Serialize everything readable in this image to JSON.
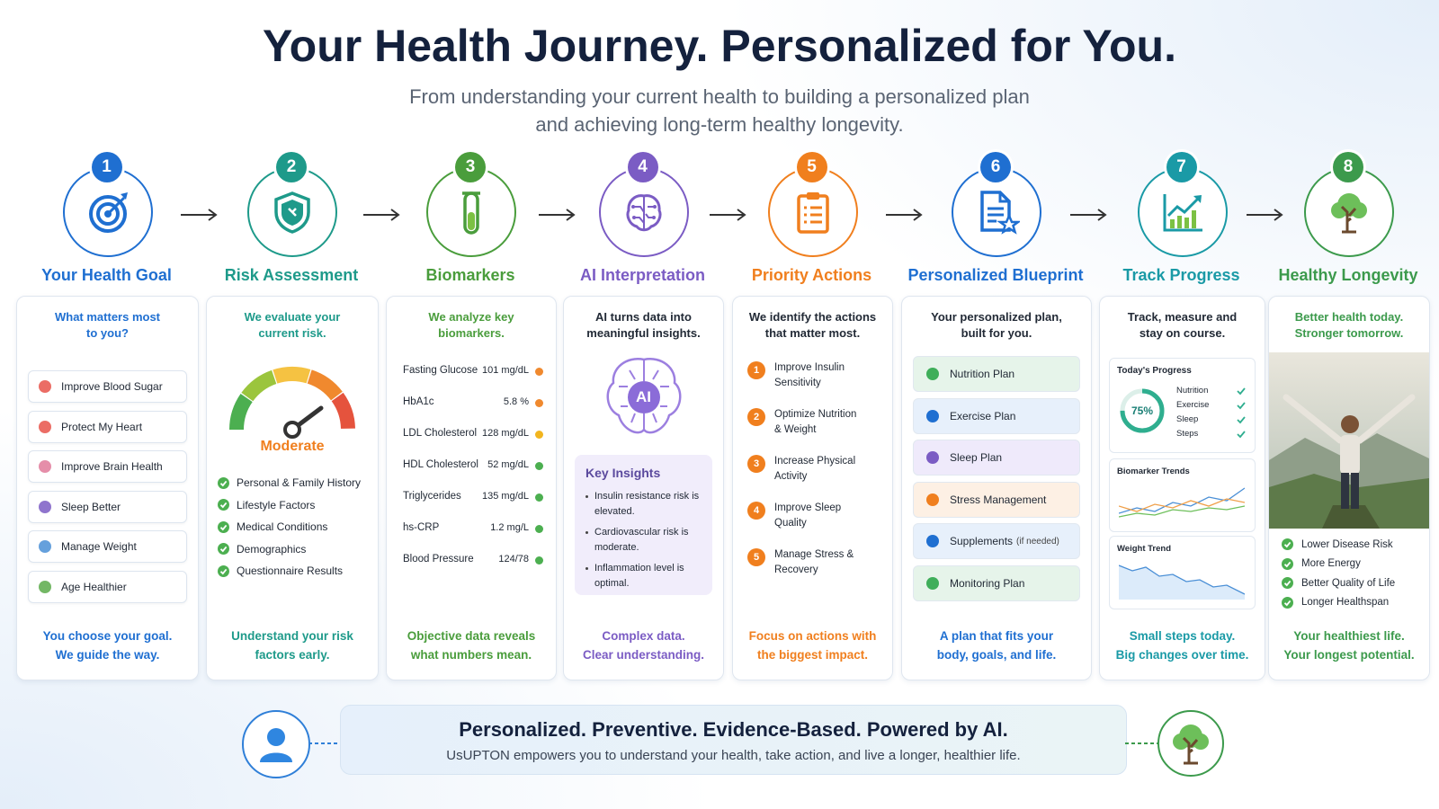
{
  "header": {
    "title": "Your Health Journey. Personalized for You.",
    "subtitle": [
      "From understanding your current health to building a personalized plan",
      "and achieving long-term healthy longevity."
    ]
  },
  "steps": [
    {
      "number": "1",
      "title": "Your Health Goal",
      "color": "#1f6fd1",
      "heading_color": "#1f6fd1",
      "heading": [
        "What matters most",
        "to you?"
      ],
      "goals": [
        "Improve Blood Sugar",
        "Protect My Heart",
        "Improve Brain Health",
        "Sleep Better",
        "Manage Weight",
        "Age Healthier"
      ],
      "footer": [
        "You choose your goal.",
        "We guide the way."
      ]
    },
    {
      "number": "2",
      "title": "Risk Assessment",
      "color": "#1e9a8a",
      "heading_color": "#1e9a8a",
      "heading": [
        "We evaluate your",
        "current risk."
      ],
      "gauge_label": "Moderate",
      "checks": [
        "Personal & Family History",
        "Lifestyle Factors",
        "Medical Conditions",
        "Demographics",
        "Questionnaire Results"
      ],
      "footer": [
        "Understand your risk",
        "factors early."
      ]
    },
    {
      "number": "3",
      "title": "Biomarkers",
      "color": "#4a9d3c",
      "heading_color": "#4a9d3c",
      "heading": [
        "We analyze key",
        "biomarkers."
      ],
      "biomarkers": [
        {
          "name": "Fasting Glucose",
          "value": "101 mg/dL",
          "status": "#f0892e"
        },
        {
          "name": "HbA1c",
          "value": "5.8 %",
          "status": "#f0892e"
        },
        {
          "name": "LDL Cholesterol",
          "value": "128 mg/dL",
          "status": "#f2b51f"
        },
        {
          "name": "HDL Cholesterol",
          "value": "52 mg/dL",
          "status": "#4caf50"
        },
        {
          "name": "Triglycerides",
          "value": "135 mg/dL",
          "status": "#4caf50"
        },
        {
          "name": "hs-CRP",
          "value": "1.2 mg/L",
          "status": "#4caf50"
        },
        {
          "name": "Blood Pressure",
          "value": "124/78",
          "status": "#4caf50"
        }
      ],
      "footer": [
        "Objective data reveals",
        "what numbers mean."
      ]
    },
    {
      "number": "4",
      "title": "AI Interpretation",
      "color": "#7b5cc4",
      "heading_color": "#222a36",
      "heading": [
        "AI turns data into",
        "meaningful insights."
      ],
      "brain_label": "AI",
      "insights": {
        "title": "Key Insights",
        "items": [
          "Insulin resistance risk is elevated.",
          "Cardiovascular risk is moderate.",
          "Inflammation level is optimal."
        ]
      },
      "footer": [
        "Complex data.",
        "Clear understanding."
      ]
    },
    {
      "number": "5",
      "title": "Priority Actions",
      "color": "#f07f1e",
      "heading_color": "#222a36",
      "heading": [
        "We identify the actions",
        "that matter most."
      ],
      "actions": [
        {
          "number": "1",
          "text": "Improve Insulin Sensitivity"
        },
        {
          "number": "2",
          "text": "Optimize Nutrition & Weight"
        },
        {
          "number": "3",
          "text": "Increase Physical Activity"
        },
        {
          "number": "4",
          "text": "Improve Sleep Quality"
        },
        {
          "number": "5",
          "text": "Manage Stress & Recovery"
        }
      ],
      "footer": [
        "Focus on actions with",
        "the biggest impact."
      ]
    },
    {
      "number": "6",
      "title": "Personalized Blueprint",
      "color": "#1f6fd1",
      "heading_color": "#222a36",
      "heading": [
        "Your personalized plan,",
        "built for you."
      ],
      "plans": [
        {
          "name": "Nutrition Plan",
          "color": "#e6f4ea",
          "icon": "#3fae5a"
        },
        {
          "name": "Exercise Plan",
          "color": "#e7f0fb",
          "icon": "#1f6fd1"
        },
        {
          "name": "Sleep Plan",
          "color": "#efeafb",
          "icon": "#7b5cc4"
        },
        {
          "name": "Stress Management",
          "color": "#fdf0e4",
          "icon": "#f07f1e"
        },
        {
          "name": "Supplements",
          "note": "(if needed)",
          "color": "#e7f0fb",
          "icon": "#1f6fd1"
        },
        {
          "name": "Monitoring Plan",
          "color": "#e6f4ea",
          "icon": "#3fae5a"
        }
      ],
      "footer": [
        "A plan that fits your",
        "body, goals, and life."
      ]
    },
    {
      "number": "7",
      "title": "Track Progress",
      "color": "#1a9aa6",
      "heading_color": "#222a36",
      "heading": [
        "Track, measure and",
        "stay on course."
      ],
      "progress_title": "Today's Progress",
      "progress_percent": 75,
      "progress_label": "75%",
      "progress_items": [
        "Nutrition",
        "Exercise",
        "Sleep",
        "Steps"
      ],
      "charts": [
        "Biomarker Trends",
        "Weight Trend"
      ],
      "footer": [
        "Small steps today.",
        "Big changes over time."
      ]
    },
    {
      "number": "8",
      "title": "Healthy Longevity",
      "color": "#3c9a4c",
      "heading_color": "#3c9a4c",
      "heading": [
        "Better health today.",
        "Stronger tomorrow."
      ],
      "outcomes": [
        "Lower Disease Risk",
        "More Energy",
        "Better Quality of Life",
        "Longer Healthspan"
      ],
      "footer": [
        "Your healthiest life.",
        "Your longest potential."
      ]
    }
  ],
  "banner": {
    "title": "Personalized. Preventive. Evidence-Based. Powered by AI.",
    "text": "UsUPTON empowers you to understand your health, take action, and live a longer, healthier life."
  }
}
